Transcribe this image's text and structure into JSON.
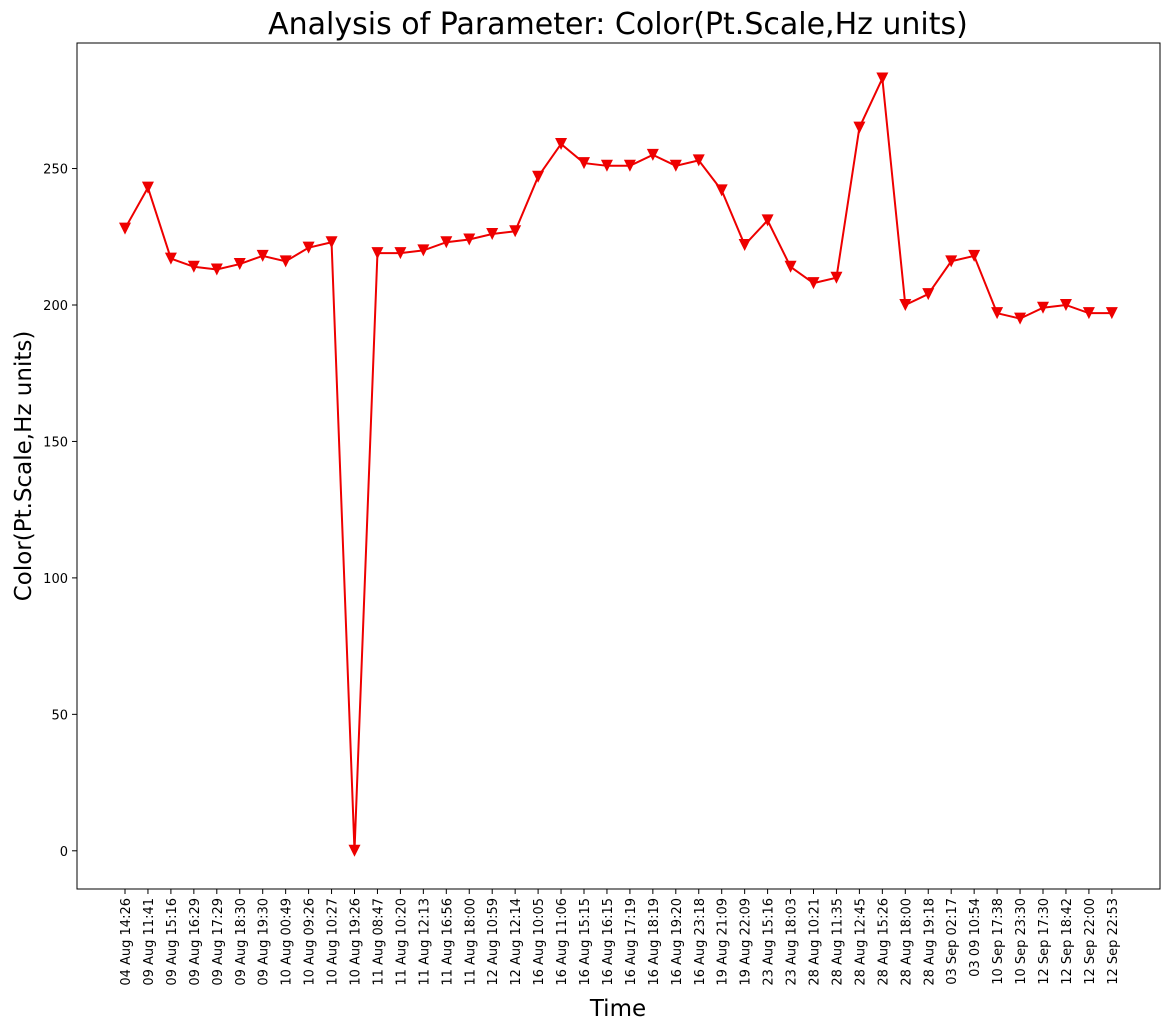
{
  "chart_data": {
    "type": "line",
    "title": "Analysis of Parameter: Color(Pt.Scale,Hz units)",
    "xlabel": "Time",
    "ylabel": "Color(Pt.Scale,Hz units)",
    "ylim": [
      -14,
      296
    ],
    "yticks": [
      0,
      50,
      100,
      150,
      200,
      250
    ],
    "grid": false,
    "marker": "triangle-down",
    "color": "#ee0000",
    "categories": [
      "04 Aug 14:26",
      "09 Aug 11:41",
      "09 Aug 15:16",
      "09 Aug 16:29",
      "09 Aug 17:29",
      "09 Aug 18:30",
      "09 Aug 19:30",
      "10 Aug 00:49",
      "10 Aug 09:26",
      "10 Aug 10:27",
      "10 Aug 19:26",
      "11 Aug 08:47",
      "11 Aug 10:20",
      "11 Aug 12:13",
      "11 Aug 16:56",
      "11 Aug 18:00",
      "12 Aug 10:59",
      "12 Aug 12:14",
      "16 Aug 10:05",
      "16 Aug 11:06",
      "16 Aug 15:15",
      "16 Aug 16:15",
      "16 Aug 17:19",
      "16 Aug 18:19",
      "16 Aug 19:20",
      "16 Aug 23:18",
      "19 Aug 21:09",
      "19 Aug 22:09",
      "23 Aug 15:16",
      "23 Aug 18:03",
      "28 Aug 10:21",
      "28 Aug 11:35",
      "28 Aug 12:45",
      "28 Aug 15:26",
      "28 Aug 18:00",
      "28 Aug 19:18",
      "03 Sep 02:17",
      "03 09 10:54",
      "10 Sep 17:38",
      "10 Sep 23:30",
      "12 Sep 17:30",
      "12 Sep 18:42",
      "12 Sep 22:00",
      "12 Sep 22:53"
    ],
    "values": [
      228,
      243,
      217,
      214,
      213,
      215,
      218,
      216,
      221,
      223,
      0,
      219,
      219,
      220,
      223,
      224,
      226,
      227,
      247,
      259,
      252,
      251,
      251,
      255,
      251,
      253,
      242,
      222,
      231,
      214,
      208,
      210,
      265,
      283,
      200,
      204,
      216,
      218,
      197,
      195,
      199,
      200,
      197,
      197
    ]
  }
}
